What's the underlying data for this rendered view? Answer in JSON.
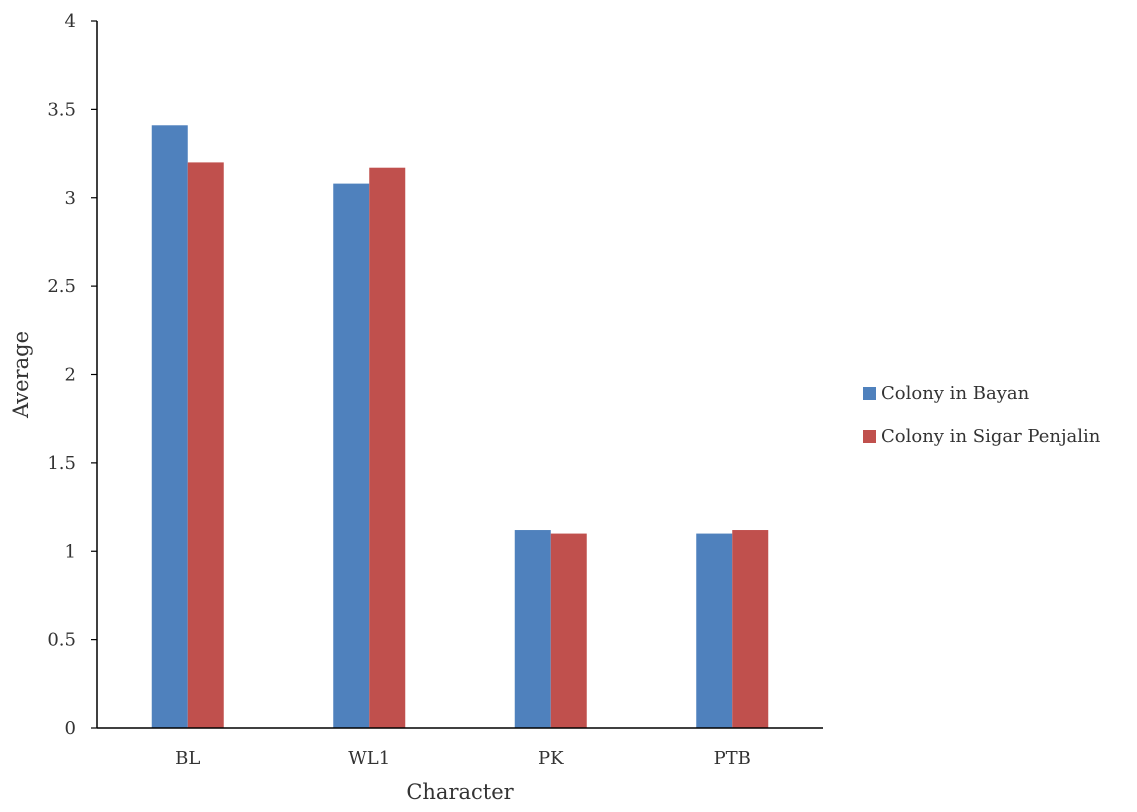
{
  "chart_data": {
    "type": "bar",
    "title": "",
    "xlabel": "Character",
    "ylabel": "Average",
    "categories": [
      "BL",
      "WL1",
      "PK",
      "PTB"
    ],
    "series": [
      {
        "name": "Colony in Bayan",
        "color": "#4F81BD",
        "values": [
          3.41,
          3.08,
          1.12,
          1.1
        ]
      },
      {
        "name": "Colony in Sigar Penjalin",
        "color": "#C0504D",
        "values": [
          3.2,
          3.17,
          1.1,
          1.12
        ]
      }
    ],
    "ylim": [
      0,
      4
    ],
    "yticks": [
      "0",
      "0.5",
      "1",
      "1.5",
      "2",
      "2.5",
      "3",
      "3.5",
      "4"
    ],
    "ytick_values": [
      0,
      0.5,
      1,
      1.5,
      2,
      2.5,
      3,
      3.5,
      4
    ],
    "grid": false,
    "legend_position": "right"
  }
}
